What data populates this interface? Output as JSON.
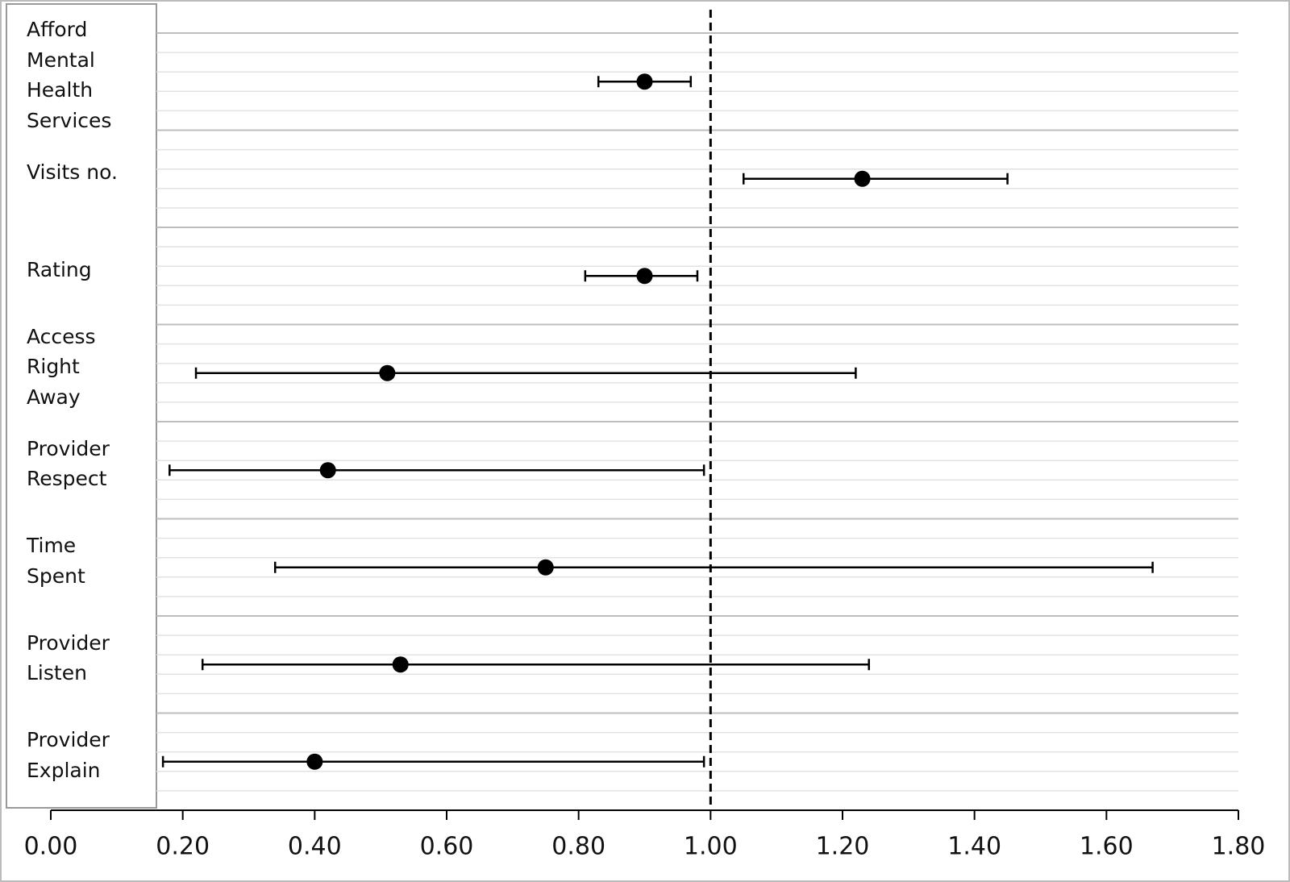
{
  "chart_data": {
    "type": "forest",
    "categories": [
      "Afford\nMental\nHealth\nServices",
      "Visits no.",
      "Rating",
      "Access\nRight\nAway",
      "Provider\nRespect",
      "Time\nSpent",
      "Provider\nListen",
      "Provider\nExplain"
    ],
    "values": [
      0.9,
      1.23,
      0.9,
      0.51,
      0.42,
      0.75,
      0.53,
      0.4
    ],
    "ci_low": [
      0.83,
      1.05,
      0.81,
      0.22,
      0.18,
      0.34,
      0.23,
      0.17
    ],
    "ci_high": [
      0.97,
      1.45,
      0.98,
      1.22,
      0.99,
      1.67,
      1.24,
      0.99
    ],
    "color": "#000000",
    "reference_line": 1,
    "xlim": [
      0,
      1.8
    ],
    "xticks": [
      {
        "value": 0,
        "label": "0.00"
      },
      {
        "value": 0.2,
        "label": "0.20"
      },
      {
        "value": 0.4,
        "label": "0.40"
      },
      {
        "value": 0.6,
        "label": "0.60"
      },
      {
        "value": 0.8,
        "label": "0.80"
      },
      {
        "value": 1,
        "label": "1.00"
      },
      {
        "value": 1.2,
        "label": "1.20"
      },
      {
        "value": 1.4,
        "label": "1.40"
      },
      {
        "value": 1.6,
        "label": "1.60"
      },
      {
        "value": 1.8,
        "label": "1.80"
      }
    ],
    "grid": true
  }
}
